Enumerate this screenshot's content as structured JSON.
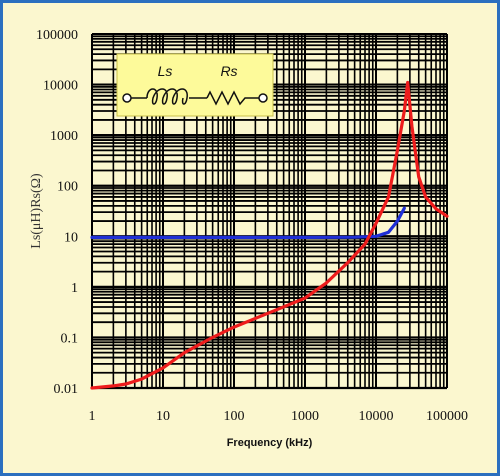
{
  "chart_data": {
    "type": "line",
    "xlabel": "Frequency (kHz)",
    "ylabel": "Ls(μH)Rs(Ω)",
    "x_scale": "log",
    "y_scale": "log",
    "xlim": [
      1,
      100000
    ],
    "ylim": [
      0.01,
      100000
    ],
    "grid": true,
    "x_ticks": [
      "1",
      "10",
      "100",
      "1000",
      "10000",
      "100000"
    ],
    "y_ticks": [
      "0.01",
      "0.1",
      "1",
      "10",
      "100",
      "1000",
      "10000",
      "100000"
    ],
    "series": [
      {
        "color": "#1f2fd6",
        "x": [
          1,
          10,
          100,
          1000,
          5000,
          10000,
          15000,
          20000,
          25000
        ],
        "y": [
          9.5,
          9.5,
          9.5,
          9.5,
          9.6,
          10,
          12,
          20,
          36
        ]
      },
      {
        "color": "#ee1c1c",
        "x": [
          1,
          2,
          3,
          5,
          10,
          20,
          50,
          100,
          300,
          1000,
          2000,
          4000,
          7000,
          10000,
          15000,
          20000,
          25000,
          28000,
          32000,
          40000,
          50000,
          70000,
          100000
        ],
        "y": [
          0.01,
          0.011,
          0.012,
          0.015,
          0.025,
          0.05,
          0.1,
          0.16,
          0.3,
          0.6,
          1.2,
          3,
          7,
          18,
          60,
          500,
          3000,
          11000,
          1500,
          150,
          60,
          35,
          25
        ]
      }
    ],
    "legend_inset": {
      "labels": [
        "Ls",
        "Rs"
      ]
    }
  },
  "colors": {
    "background": "#fbf7cf",
    "border": "#2b6fbf",
    "inset": "#fdfa9a"
  }
}
